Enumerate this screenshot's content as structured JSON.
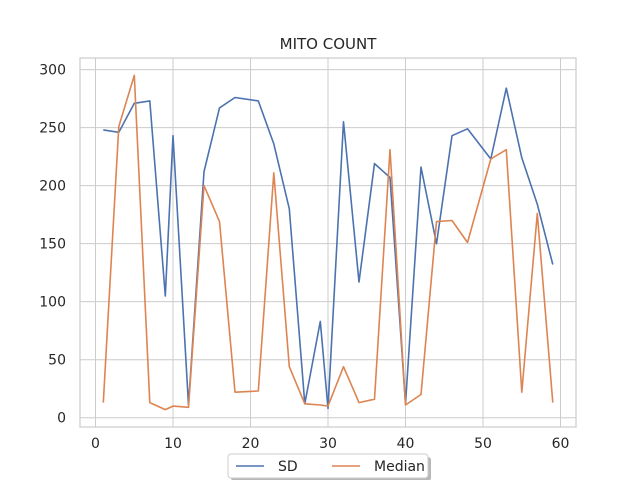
{
  "chart_data": {
    "type": "line",
    "title": "MITO COUNT",
    "xlabel": "",
    "ylabel": "",
    "xlim": [
      -2,
      62
    ],
    "ylim": [
      -8,
      310
    ],
    "xticks": [
      0,
      10,
      20,
      30,
      40,
      50,
      60
    ],
    "yticks": [
      0,
      50,
      100,
      150,
      200,
      250,
      300
    ],
    "grid": true,
    "legend_position": "bottom-center",
    "x": [
      1,
      3,
      5,
      7,
      9,
      10,
      12,
      14,
      16,
      18,
      21,
      23,
      25,
      27,
      29,
      30,
      32,
      34,
      36,
      38,
      40,
      42,
      44,
      46,
      48,
      51,
      53,
      55,
      57,
      59
    ],
    "series": [
      {
        "name": "SD",
        "color": "#4c72b0",
        "values": [
          248,
          246,
          271,
          273,
          105,
          243,
          11,
          212,
          267,
          276,
          273,
          236,
          180,
          12,
          83,
          8,
          255,
          117,
          219,
          207,
          12,
          216,
          150,
          243,
          249,
          223,
          284,
          224,
          184,
          132
        ]
      },
      {
        "name": "Median",
        "color": "#dd8452",
        "values": [
          13,
          251,
          295,
          13,
          7,
          10,
          9,
          200,
          169,
          22,
          23,
          211,
          44,
          12,
          11,
          10,
          44,
          13,
          16,
          231,
          11,
          20,
          169,
          170,
          151,
          223,
          231,
          22,
          176,
          13
        ]
      }
    ]
  }
}
